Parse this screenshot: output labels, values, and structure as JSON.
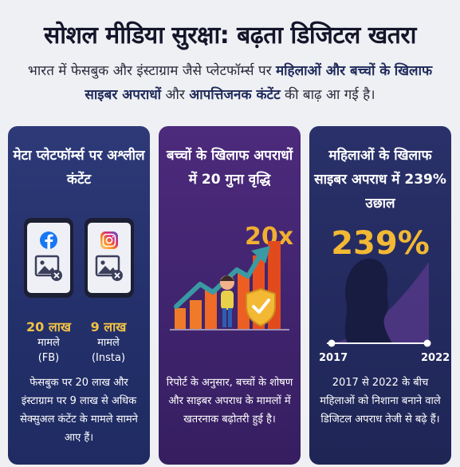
{
  "header": {
    "title": "सोशल मीडिया सुरक्षा: बढ़ता डिजिटल खतरा",
    "subtitle_part1": "भारत में फेसबुक और इंस्टाग्राम जैसे प्लेटफॉर्म्स पर ",
    "subtitle_bold1": "महिलाओं और बच्चों के",
    "subtitle_part2": " ",
    "subtitle_bold2": "खिलाफ साइबर अपराधों",
    "subtitle_part3": " और ",
    "subtitle_bold3": "आपत्तिजनक कंटेंट",
    "subtitle_part4": " की बाढ़ आ गई है।"
  },
  "cards": [
    {
      "title": "मेटा प्लेटफॉर्म्स पर अश्लील कंटेंट",
      "stats": [
        {
          "number": "20 लाख",
          "label1": "मामले",
          "label2": "(FB)"
        },
        {
          "number": "9 लाख",
          "label1": "मामले",
          "label2": "(Insta)"
        }
      ],
      "footer": "फेसबुक पर 20 लाख और इंस्टाग्राम पर 9 लाख से अधिक सेक्सुअल कंटेंट के मामले सामने आए हैं।"
    },
    {
      "title": "बच्चों के खिलाफ अपराधों में 20 गुना वृद्धि",
      "highlight": "20x",
      "footer": "रिपोर्ट के अनुसार, बच्चों के शोषण और साइबर अपराध के मामलों में खतरनाक बढ़ोतरी हुई है।"
    },
    {
      "title": "महिलाओं के खिलाफ साइबर अपराध में 239% उछाल",
      "highlight": "239%",
      "year_start": "2017",
      "year_end": "2022",
      "footer": "2017 से 2022 के बीच महिलाओं को निशाना बनाने वाले डिजिटल अपराध तेजी से बढ़े हैं।"
    }
  ],
  "colors": {
    "accent_gold": "#f3c246",
    "card1_bg": "#2e3a78",
    "card2_bg": "#4c2a7c",
    "card3_bg": "#2a316a",
    "bar_orange": "#ef7a2a",
    "arrow_teal": "#3a9aa4",
    "facebook_blue": "#1877f2",
    "instagram_pink": "#dd2a7b"
  },
  "icons": [
    "facebook-icon",
    "instagram-icon",
    "image-icon",
    "close-icon",
    "shield-check-icon",
    "trend-arrow-icon",
    "child-figure",
    "woman-silhouette"
  ]
}
